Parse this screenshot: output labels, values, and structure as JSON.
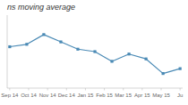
{
  "chart_data": {
    "type": "line",
    "title": "ns moving average",
    "x": [
      0,
      1,
      2,
      3,
      4,
      5,
      6,
      7,
      8,
      9,
      10
    ],
    "values": [
      82,
      83,
      87,
      84,
      81,
      80,
      76,
      79,
      77,
      71,
      73
    ],
    "color": "#4a8ab5",
    "marker": "square",
    "xlim": [
      -0.15,
      10.15
    ],
    "ylim": [
      65,
      95
    ],
    "xticks": [
      {
        "value": 0,
        "label": "Sep 14"
      },
      {
        "value": 1.1111111111111112,
        "label": "Oct 14"
      },
      {
        "value": 2.2222222222222223,
        "label": "Nov 14"
      },
      {
        "value": 3.3333333333333335,
        "label": "Dec 14"
      },
      {
        "value": 4.444444444444445,
        "label": "Jan 15"
      },
      {
        "value": 5.555555555555555,
        "label": "Feb 15"
      },
      {
        "value": 6.666666666666667,
        "label": "Mar 15"
      },
      {
        "value": 7.777777777777778,
        "label": "Apr 15"
      },
      {
        "value": 8.88888888888889,
        "label": "May 15"
      },
      {
        "value": 10,
        "label": "Ju"
      }
    ],
    "grid": false,
    "tick_labels": "x"
  }
}
